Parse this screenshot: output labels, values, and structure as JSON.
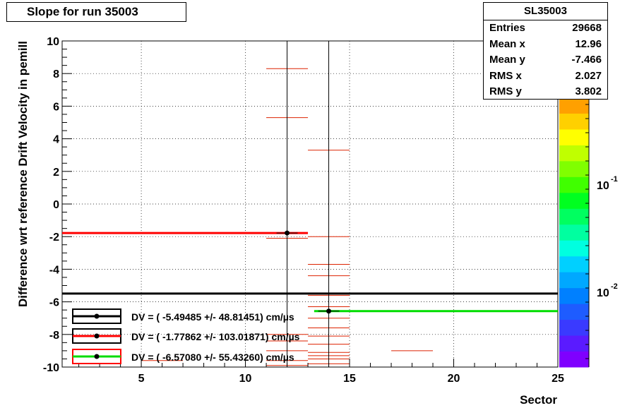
{
  "title": "Slope for run 35003",
  "stats": {
    "name": "SL35003",
    "rows": [
      {
        "key": "Entries",
        "value": "29668"
      },
      {
        "key": "Mean x",
        "value": "12.96"
      },
      {
        "key": "Mean y",
        "value": "-7.466"
      },
      {
        "key": "RMS x",
        "value": "2.027"
      },
      {
        "key": "RMS y",
        "value": "3.802"
      }
    ]
  },
  "colorbar": {
    "labels": [
      {
        "text": "10",
        "exp": "-1"
      },
      {
        "text": "10",
        "exp": "-2"
      }
    ],
    "colors": [
      "#7f00ff",
      "#5a1bff",
      "#3a3aff",
      "#1e5cff",
      "#0080ff",
      "#00a8ff",
      "#00d0ff",
      "#00ffe0",
      "#00ffa0",
      "#00ff60",
      "#00ff20",
      "#40ff00",
      "#80ff00",
      "#c0ff00",
      "#ffff00",
      "#ffd000",
      "#ffa000"
    ]
  },
  "chart_data": {
    "type": "heatmap",
    "title": "Slope for run 35003",
    "xlabel": "Sector",
    "ylabel": "Difference wrt reference Drift Velocity in pemill",
    "xlim": [
      1.2,
      25
    ],
    "ylim": [
      -10,
      10
    ],
    "xticks": [
      5,
      10,
      15,
      20,
      25
    ],
    "yticks": [
      -10,
      -8,
      -6,
      -4,
      -2,
      0,
      2,
      4,
      6,
      8,
      10
    ],
    "grid": true,
    "cells": [
      {
        "x0": 11,
        "x1": 13,
        "y": 8.3
      },
      {
        "x0": 11,
        "x1": 13,
        "y": 5.3
      },
      {
        "x0": 11,
        "x1": 13,
        "y": -2.1
      },
      {
        "x0": 11,
        "x1": 13,
        "y": -8.0
      },
      {
        "x0": 11,
        "x1": 13,
        "y": -8.4
      },
      {
        "x0": 11,
        "x1": 13,
        "y": -9.0
      },
      {
        "x0": 11,
        "x1": 13,
        "y": -9.6
      },
      {
        "x0": 11,
        "x1": 13,
        "y": -9.9
      },
      {
        "x0": 13,
        "x1": 15,
        "y": 3.3
      },
      {
        "x0": 13,
        "x1": 15,
        "y": -2.0
      },
      {
        "x0": 13,
        "x1": 15,
        "y": -3.7
      },
      {
        "x0": 13,
        "x1": 15,
        "y": -4.4
      },
      {
        "x0": 13,
        "x1": 15,
        "y": -5.6
      },
      {
        "x0": 13,
        "x1": 15,
        "y": -6.3
      },
      {
        "x0": 13,
        "x1": 15,
        "y": -7.0
      },
      {
        "x0": 13,
        "x1": 15,
        "y": -7.6
      },
      {
        "x0": 13,
        "x1": 15,
        "y": -8.1
      },
      {
        "x0": 13,
        "x1": 15,
        "y": -8.6
      },
      {
        "x0": 13,
        "x1": 15,
        "y": -9.1
      },
      {
        "x0": 13,
        "x1": 15,
        "y": -9.3
      },
      {
        "x0": 13,
        "x1": 15,
        "y": -9.5
      },
      {
        "x0": 13,
        "x1": 15,
        "y": -9.8
      },
      {
        "x0": 17,
        "x1": 19,
        "y": -9.0
      },
      {
        "x0": 5,
        "x1": 7,
        "y": -9.6
      }
    ],
    "series": [
      {
        "values": [
          {
            "x": 12,
            "y": -1.77862
          }
        ],
        "color": "#ff0000"
      },
      {
        "values": [
          {
            "x": 14,
            "y": -6.5708
          }
        ],
        "color": "#00dd00"
      }
    ],
    "lines": [
      {
        "y": -5.49485,
        "x0": 1.2,
        "x1": 25,
        "color": "#000000"
      },
      {
        "y": -1.77862,
        "x0": 1.2,
        "x1": 13.0,
        "color": "#ff0000"
      },
      {
        "y": -6.5708,
        "x0": 13.3,
        "x1": 25,
        "color": "#00dd00"
      }
    ],
    "vlines": [
      {
        "x": 12,
        "y0": -10,
        "y1": 10
      },
      {
        "x": 14,
        "y0": -10,
        "y1": 10
      }
    ],
    "legend": [
      {
        "text": "DV = (  -5.49485 +/-   48.81451) cm/µs",
        "box_color": "#000000",
        "line_color": "#000000"
      },
      {
        "text": "DV = (  -1.77862 +/-  103.01871) cm/µs",
        "box_color": "#000000",
        "line_color": "#ff0000"
      },
      {
        "text": "DV = (  -6.57080 +/-   55.43260) cm/µs",
        "box_color": "#ff0000",
        "line_color": "#00dd00"
      }
    ]
  }
}
